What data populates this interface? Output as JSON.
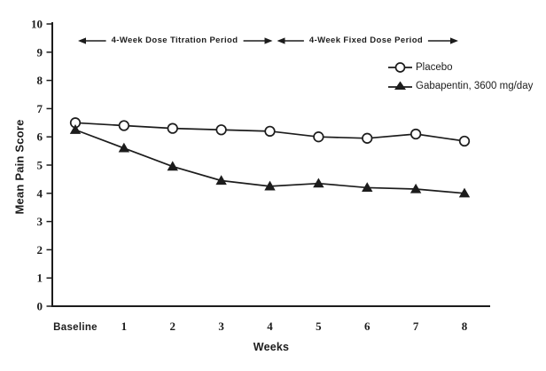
{
  "figure": {
    "background": "#ffffff",
    "ink_color": "#1c1c1c"
  },
  "chart_data": {
    "type": "line",
    "title": "",
    "xlabel": "Weeks",
    "ylabel": "Mean Pain Score",
    "categories": [
      "Baseline",
      "1",
      "2",
      "3",
      "4",
      "5",
      "6",
      "7",
      "8"
    ],
    "ylim": [
      0,
      10
    ],
    "yticks": [
      0,
      1,
      2,
      3,
      4,
      5,
      6,
      7,
      8,
      9,
      10
    ],
    "grid": false,
    "legend_position": "upper right",
    "series": [
      {
        "name": "Placebo",
        "marker": "open-circle",
        "color": "#1c1c1c",
        "values": [
          6.5,
          6.4,
          6.3,
          6.25,
          6.2,
          6.0,
          5.95,
          6.1,
          5.85
        ]
      },
      {
        "name": "Gabapentin, 3600 mg/day",
        "marker": "filled-triangle",
        "color": "#1c1c1c",
        "values": [
          6.25,
          5.6,
          4.95,
          4.45,
          4.25,
          4.35,
          4.2,
          4.15,
          4.0
        ]
      }
    ],
    "annotations": [
      {
        "label": "4-Week Dose Titration Period",
        "from_category": "Baseline",
        "to_category": "4",
        "style": "double-arrow"
      },
      {
        "label": "4-Week Fixed Dose Period",
        "from_category": "4",
        "to_category": "8",
        "style": "double-arrow"
      }
    ]
  }
}
